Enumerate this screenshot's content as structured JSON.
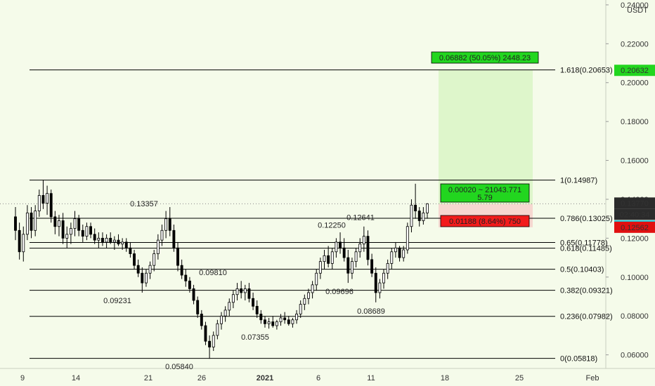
{
  "chart_data": {
    "type": "candlestick",
    "currency": "USDT",
    "y_axis": {
      "range": [
        0.053,
        0.2425
      ],
      "ticks": [
        "0.06000",
        "0.08000",
        "0.10000",
        "0.12000",
        "0.14000",
        "0.16000",
        "0.18000",
        "0.20000",
        "0.22000",
        "0.24000"
      ]
    },
    "x_axis": {
      "ticks": [
        "9",
        "14",
        "21",
        "26",
        "2021",
        "6",
        "11",
        "18",
        "25",
        "Feb"
      ]
    },
    "fib_levels": [
      {
        "label": "1.618(0.20653)",
        "value": 0.20653
      },
      {
        "label": "1(0.14987)",
        "value": 0.14987
      },
      {
        "label": "0.786(0.13025)",
        "value": 0.13025
      },
      {
        "label": "0.65(0.11778)",
        "value": 0.11778
      },
      {
        "label": "0.618(0.11485)",
        "value": 0.11485
      },
      {
        "label": "0.5(0.10403)",
        "value": 0.10403
      },
      {
        "label": "0.382(0.09321)",
        "value": 0.09321
      },
      {
        "label": "0.236(0.07982)",
        "value": 0.07982
      },
      {
        "label": "0(0.05818)",
        "value": 0.05818
      }
    ],
    "price_points": [
      {
        "label": "0.13357",
        "value": 0.13357,
        "pos": "above"
      },
      {
        "label": "0.09231",
        "value": 0.09231,
        "pos": "below"
      },
      {
        "label": "0.05840",
        "value": 0.0584,
        "pos": "below"
      },
      {
        "label": "0.09810",
        "value": 0.0981,
        "pos": "above"
      },
      {
        "label": "0.07355",
        "value": 0.07355,
        "pos": "below"
      },
      {
        "label": "0.09696",
        "value": 0.09696,
        "pos": "below"
      },
      {
        "label": "0.12250",
        "value": 0.1225,
        "pos": "above"
      },
      {
        "label": "0.12641",
        "value": 0.12641,
        "pos": "above"
      },
      {
        "label": "0.08689",
        "value": 0.08689,
        "pos": "below"
      }
    ],
    "position": {
      "entry": 0.1375,
      "target": 0.20632,
      "stop": 0.12562,
      "target_label": "0.06882 (50.05%) 2448.23",
      "entry_label_line1": "0.00020 ~ 21043.771",
      "entry_label_line2": "5.79",
      "stop_label": "0.01188 (8.64%) 750"
    },
    "axis_badges": {
      "target": "0.20632",
      "current": "0.13770",
      "countdown": "02:40:34",
      "entry": "0.13750",
      "stop": "0.12562"
    },
    "current_price": 0.1377,
    "candles": [
      [
        0.131,
        0.136,
        0.119,
        0.124
      ],
      [
        0.124,
        0.128,
        0.109,
        0.113
      ],
      [
        0.113,
        0.126,
        0.108,
        0.122
      ],
      [
        0.122,
        0.137,
        0.119,
        0.133
      ],
      [
        0.133,
        0.136,
        0.12,
        0.124
      ],
      [
        0.124,
        0.137,
        0.121,
        0.134
      ],
      [
        0.134,
        0.145,
        0.131,
        0.142
      ],
      [
        0.142,
        0.15,
        0.135,
        0.138
      ],
      [
        0.138,
        0.147,
        0.132,
        0.143
      ],
      [
        0.143,
        0.145,
        0.128,
        0.131
      ],
      [
        0.131,
        0.134,
        0.122,
        0.126
      ],
      [
        0.126,
        0.132,
        0.121,
        0.129
      ],
      [
        0.129,
        0.133,
        0.117,
        0.12
      ],
      [
        0.12,
        0.126,
        0.115,
        0.122
      ],
      [
        0.122,
        0.128,
        0.117,
        0.125
      ],
      [
        0.125,
        0.134,
        0.121,
        0.13
      ],
      [
        0.13,
        0.132,
        0.121,
        0.124
      ],
      [
        0.124,
        0.127,
        0.118,
        0.121
      ],
      [
        0.121,
        0.128,
        0.119,
        0.126
      ],
      [
        0.126,
        0.128,
        0.12,
        0.122
      ],
      [
        0.122,
        0.125,
        0.117,
        0.119
      ],
      [
        0.119,
        0.123,
        0.115,
        0.12
      ],
      [
        0.12,
        0.123,
        0.116,
        0.118
      ],
      [
        0.118,
        0.122,
        0.115,
        0.12
      ],
      [
        0.12,
        0.123,
        0.117,
        0.118
      ],
      [
        0.118,
        0.121,
        0.114,
        0.119
      ],
      [
        0.119,
        0.122,
        0.116,
        0.117
      ],
      [
        0.117,
        0.12,
        0.114,
        0.118
      ],
      [
        0.118,
        0.12,
        0.113,
        0.115
      ],
      [
        0.115,
        0.118,
        0.11,
        0.112
      ],
      [
        0.112,
        0.114,
        0.104,
        0.106
      ],
      [
        0.106,
        0.109,
        0.1,
        0.102
      ],
      [
        0.102,
        0.105,
        0.092,
        0.097
      ],
      [
        0.097,
        0.104,
        0.095,
        0.102
      ],
      [
        0.102,
        0.108,
        0.099,
        0.106
      ],
      [
        0.106,
        0.114,
        0.103,
        0.112
      ],
      [
        0.112,
        0.122,
        0.109,
        0.119
      ],
      [
        0.119,
        0.127,
        0.116,
        0.124
      ],
      [
        0.124,
        0.134,
        0.12,
        0.13
      ],
      [
        0.13,
        0.136,
        0.121,
        0.124
      ],
      [
        0.124,
        0.127,
        0.113,
        0.115
      ],
      [
        0.115,
        0.118,
        0.103,
        0.106
      ],
      [
        0.106,
        0.109,
        0.099,
        0.101
      ],
      [
        0.101,
        0.104,
        0.095,
        0.098
      ],
      [
        0.098,
        0.1,
        0.092,
        0.094
      ],
      [
        0.094,
        0.096,
        0.086,
        0.088
      ],
      [
        0.088,
        0.09,
        0.079,
        0.081
      ],
      [
        0.081,
        0.083,
        0.073,
        0.075
      ],
      [
        0.075,
        0.077,
        0.065,
        0.067
      ],
      [
        0.067,
        0.07,
        0.058,
        0.064
      ],
      [
        0.064,
        0.072,
        0.062,
        0.07
      ],
      [
        0.07,
        0.078,
        0.068,
        0.076
      ],
      [
        0.076,
        0.082,
        0.073,
        0.08
      ],
      [
        0.08,
        0.085,
        0.077,
        0.083
      ],
      [
        0.083,
        0.089,
        0.08,
        0.087
      ],
      [
        0.087,
        0.093,
        0.084,
        0.091
      ],
      [
        0.091,
        0.097,
        0.088,
        0.094
      ],
      [
        0.094,
        0.098,
        0.089,
        0.092
      ],
      [
        0.092,
        0.096,
        0.088,
        0.094
      ],
      [
        0.094,
        0.097,
        0.087,
        0.089
      ],
      [
        0.089,
        0.092,
        0.083,
        0.085
      ],
      [
        0.085,
        0.088,
        0.079,
        0.081
      ],
      [
        0.081,
        0.083,
        0.076,
        0.078
      ],
      [
        0.078,
        0.08,
        0.074,
        0.076
      ],
      [
        0.076,
        0.079,
        0.0735,
        0.077
      ],
      [
        0.077,
        0.08,
        0.074,
        0.075
      ],
      [
        0.075,
        0.078,
        0.073,
        0.077
      ],
      [
        0.077,
        0.081,
        0.075,
        0.079
      ],
      [
        0.079,
        0.082,
        0.076,
        0.078
      ],
      [
        0.078,
        0.08,
        0.075,
        0.076
      ],
      [
        0.076,
        0.079,
        0.074,
        0.078
      ],
      [
        0.078,
        0.083,
        0.076,
        0.081
      ],
      [
        0.081,
        0.088,
        0.079,
        0.086
      ],
      [
        0.086,
        0.091,
        0.083,
        0.089
      ],
      [
        0.089,
        0.094,
        0.086,
        0.092
      ],
      [
        0.092,
        0.098,
        0.089,
        0.096
      ],
      [
        0.096,
        0.104,
        0.093,
        0.102
      ],
      [
        0.102,
        0.11,
        0.099,
        0.108
      ],
      [
        0.108,
        0.114,
        0.104,
        0.111
      ],
      [
        0.111,
        0.116,
        0.105,
        0.107
      ],
      [
        0.107,
        0.115,
        0.104,
        0.113
      ],
      [
        0.113,
        0.12,
        0.11,
        0.118
      ],
      [
        0.118,
        0.123,
        0.112,
        0.115
      ],
      [
        0.115,
        0.12,
        0.108,
        0.11
      ],
      [
        0.11,
        0.114,
        0.097,
        0.102
      ],
      [
        0.102,
        0.11,
        0.099,
        0.108
      ],
      [
        0.108,
        0.115,
        0.105,
        0.113
      ],
      [
        0.113,
        0.12,
        0.11,
        0.117
      ],
      [
        0.117,
        0.126,
        0.113,
        0.121
      ],
      [
        0.121,
        0.124,
        0.106,
        0.109
      ],
      [
        0.109,
        0.112,
        0.1,
        0.102
      ],
      [
        0.102,
        0.105,
        0.087,
        0.092
      ],
      [
        0.092,
        0.099,
        0.089,
        0.097
      ],
      [
        0.097,
        0.104,
        0.094,
        0.102
      ],
      [
        0.102,
        0.109,
        0.099,
        0.107
      ],
      [
        0.107,
        0.115,
        0.104,
        0.113
      ],
      [
        0.113,
        0.118,
        0.11,
        0.115
      ],
      [
        0.115,
        0.116,
        0.108,
        0.11
      ],
      [
        0.11,
        0.116,
        0.108,
        0.114
      ],
      [
        0.114,
        0.128,
        0.112,
        0.126
      ],
      [
        0.126,
        0.14,
        0.123,
        0.137
      ],
      [
        0.137,
        0.148,
        0.13,
        0.134
      ],
      [
        0.134,
        0.136,
        0.126,
        0.129
      ],
      [
        0.129,
        0.136,
        0.127,
        0.133
      ],
      [
        0.133,
        0.138,
        0.13,
        0.1377
      ]
    ]
  }
}
